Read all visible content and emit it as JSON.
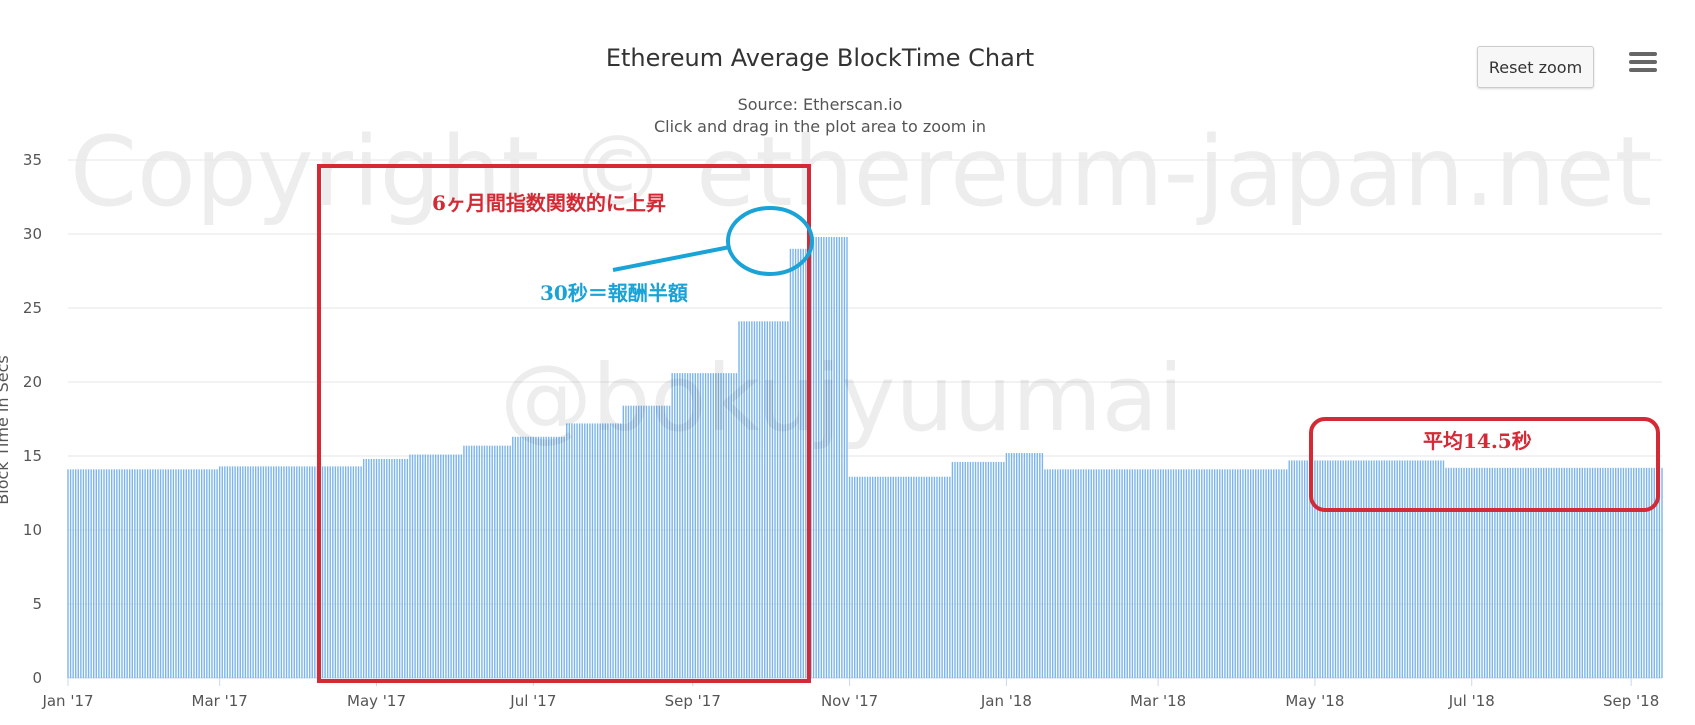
{
  "chart_data": {
    "type": "bar",
    "title": "Ethereum Average BlockTime Chart",
    "subtitle_source": "Source: Etherscan.io",
    "subtitle_hint": "Click and drag in the plot area to zoom in",
    "ylabel": "Block Time in Secs",
    "xlabel": "",
    "ylim": [
      0,
      35
    ],
    "yticks": [
      "0",
      "5",
      "10",
      "15",
      "20",
      "25",
      "30",
      "35"
    ],
    "xticks": [
      "Jan '17",
      "Mar '17",
      "May '17",
      "Jul '17",
      "Sep '17",
      "Nov '17",
      "Jan '18",
      "Mar '18",
      "May '18",
      "Jul '18",
      "Sep '18"
    ],
    "x_start": "2017-01-01",
    "x_end": "2018-09-13",
    "grid": true,
    "legend": "none",
    "bar_color": "#7cb5ec",
    "series": [
      {
        "segments": [
          {
            "from": "2017-01-01",
            "to": "2017-02-28",
            "value": 14.1
          },
          {
            "from": "2017-03-01",
            "to": "2017-04-25",
            "value": 14.3
          },
          {
            "from": "2017-04-26",
            "to": "2017-05-13",
            "value": 14.8
          },
          {
            "from": "2017-05-14",
            "to": "2017-06-03",
            "value": 15.1
          },
          {
            "from": "2017-06-04",
            "to": "2017-06-22",
            "value": 15.7
          },
          {
            "from": "2017-06-23",
            "to": "2017-07-13",
            "value": 16.3
          },
          {
            "from": "2017-07-14",
            "to": "2017-08-04",
            "value": 17.2
          },
          {
            "from": "2017-08-05",
            "to": "2017-08-23",
            "value": 18.4
          },
          {
            "from": "2017-08-24",
            "to": "2017-09-18",
            "value": 20.6
          },
          {
            "from": "2017-09-19",
            "to": "2017-10-08",
            "value": 24.1
          },
          {
            "from": "2017-10-09",
            "to": "2017-10-15",
            "value": 29.0
          },
          {
            "from": "2017-10-16",
            "to": "2017-10-31",
            "value": 29.8
          },
          {
            "from": "2017-11-01",
            "to": "2017-12-10",
            "value": 13.6
          },
          {
            "from": "2017-12-11",
            "to": "2017-12-31",
            "value": 14.6
          },
          {
            "from": "2018-01-01",
            "to": "2018-01-15",
            "value": 15.2
          },
          {
            "from": "2018-01-16",
            "to": "2018-04-20",
            "value": 14.1
          },
          {
            "from": "2018-04-21",
            "to": "2018-06-20",
            "value": 14.7
          },
          {
            "from": "2018-06-21",
            "to": "2018-09-13",
            "value": 14.2
          }
        ]
      }
    ]
  },
  "watermarks": {
    "copyright": "Copyright © ethereum-japan.net",
    "handle": "@bokujyuumai"
  },
  "annotations": {
    "exponential_rise": "6ヶ月間指数関数的に上昇",
    "halving_note": "30秒＝報酬半額",
    "average_note": "平均14.5秒",
    "red_color": "#d42a36",
    "blue_color": "#19a3d6"
  },
  "controls": {
    "reset_zoom_label": "Reset zoom",
    "menu_icon": "hamburger-menu-icon"
  }
}
